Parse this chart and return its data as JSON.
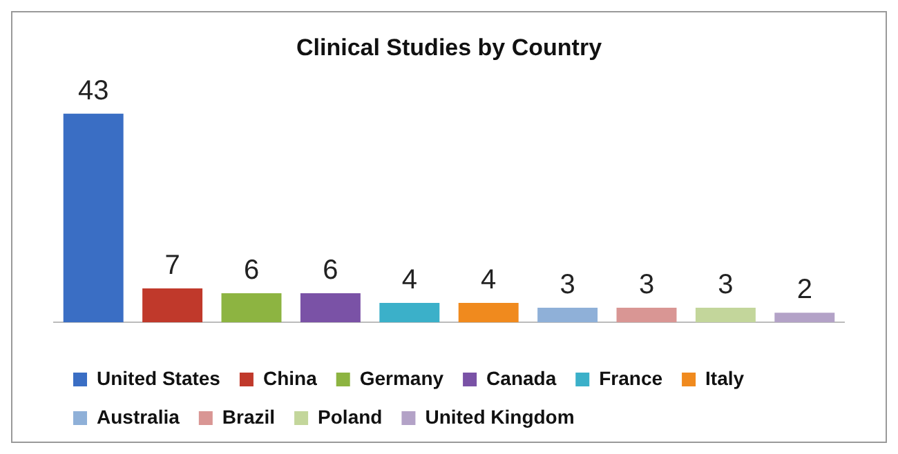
{
  "chart_data": {
    "type": "bar",
    "title": "Clinical Studies by Country",
    "categories": [
      null,
      null,
      null,
      null,
      null,
      null,
      null,
      null,
      null,
      null
    ],
    "stacked": true,
    "series": [
      {
        "name": "United States",
        "color": "#3a6ec4",
        "values": [
          43,
          null,
          null,
          null,
          null,
          null,
          null,
          null,
          null,
          null
        ]
      },
      {
        "name": "China",
        "color": "#c0392b",
        "values": [
          null,
          7,
          null,
          null,
          null,
          null,
          null,
          null,
          null,
          null
        ]
      },
      {
        "name": "Germany",
        "color": "#8db441",
        "values": [
          null,
          null,
          6,
          null,
          null,
          null,
          null,
          null,
          null,
          null
        ]
      },
      {
        "name": "Canada",
        "color": "#7a52a6",
        "values": [
          null,
          null,
          null,
          6,
          null,
          null,
          null,
          null,
          null,
          null
        ]
      },
      {
        "name": "France",
        "color": "#3bb0c9",
        "values": [
          null,
          null,
          null,
          null,
          4,
          null,
          null,
          null,
          null,
          null
        ]
      },
      {
        "name": "Italy",
        "color": "#f08a1e",
        "values": [
          null,
          null,
          null,
          null,
          null,
          4,
          null,
          null,
          null,
          null
        ]
      },
      {
        "name": "Australia",
        "color": "#8fb0d8",
        "values": [
          null,
          null,
          null,
          null,
          null,
          null,
          3,
          null,
          null,
          null
        ]
      },
      {
        "name": "Brazil",
        "color": "#d99694",
        "values": [
          null,
          null,
          null,
          null,
          null,
          null,
          null,
          3,
          null,
          null
        ]
      },
      {
        "name": "Poland",
        "color": "#c3d69b",
        "values": [
          null,
          null,
          null,
          null,
          null,
          null,
          null,
          null,
          3,
          null
        ]
      },
      {
        "name": "United Kingdom",
        "color": "#b3a2c7",
        "values": [
          null,
          null,
          null,
          null,
          null,
          null,
          null,
          null,
          null,
          2
        ]
      }
    ],
    "data_labels": true,
    "legend": "bottom"
  }
}
